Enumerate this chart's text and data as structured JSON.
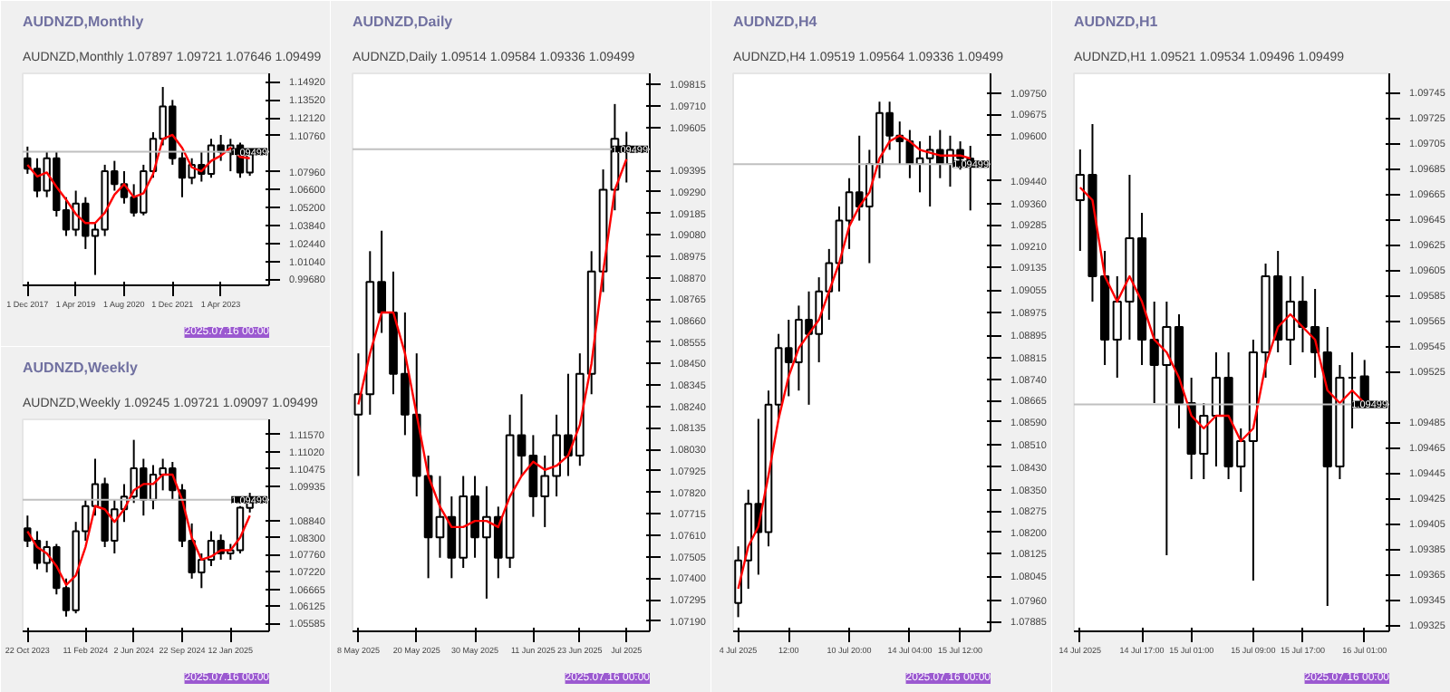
{
  "chart_data": [
    {
      "type": "candlestick",
      "title": "AUDNZD,Monthly",
      "subtitle": "AUDNZD,Monthly 1.07897 1.09721 1.07646 1.09499",
      "categories": [
        "1 Dec 2017",
        null,
        null,
        null,
        null,
        "1 Apr 2019",
        null,
        null,
        null,
        null,
        "1 Aug 2020",
        null,
        null,
        null,
        null,
        "1 Dec 2021",
        null,
        null,
        null,
        null,
        "1 Apr 2023",
        null,
        null,
        null
      ],
      "ohlc": [
        [
          1.09,
          1.099,
          1.078,
          1.082
        ],
        [
          1.082,
          1.09,
          1.06,
          1.065
        ],
        [
          1.065,
          1.095,
          1.06,
          1.09
        ],
        [
          1.09,
          1.095,
          1.045,
          1.05
        ],
        [
          1.05,
          1.06,
          1.03,
          1.035
        ],
        [
          1.035,
          1.065,
          1.03,
          1.055
        ],
        [
          1.055,
          1.06,
          1.02,
          1.03
        ],
        [
          1.03,
          1.04,
          1.0,
          1.035
        ],
        [
          1.035,
          1.085,
          1.03,
          1.08
        ],
        [
          1.08,
          1.088,
          1.065,
          1.07
        ],
        [
          1.07,
          1.08,
          1.055,
          1.06
        ],
        [
          1.06,
          1.07,
          1.045,
          1.048
        ],
        [
          1.048,
          1.085,
          1.046,
          1.08
        ],
        [
          1.08,
          1.11,
          1.075,
          1.105
        ],
        [
          1.105,
          1.145,
          1.1,
          1.13
        ],
        [
          1.13,
          1.135,
          1.085,
          1.09
        ],
        [
          1.09,
          1.095,
          1.06,
          1.075
        ],
        [
          1.075,
          1.09,
          1.07,
          1.085
        ],
        [
          1.085,
          1.095,
          1.072,
          1.078
        ],
        [
          1.078,
          1.105,
          1.075,
          1.1
        ],
        [
          1.1,
          1.108,
          1.088,
          1.095
        ],
        [
          1.095,
          1.105,
          1.08,
          1.1
        ],
        [
          1.1,
          1.102,
          1.075,
          1.079
        ],
        [
          1.07897,
          1.09721,
          1.07646,
          1.09499
        ]
      ],
      "series": [
        {
          "type": "line",
          "color": "#ff0000",
          "values": [
            1.085,
            1.076,
            1.079,
            1.068,
            1.058,
            1.047,
            1.04,
            1.04,
            1.048,
            1.062,
            1.07,
            1.06,
            1.063,
            1.078,
            1.105,
            1.108,
            1.098,
            1.083,
            1.08,
            1.088,
            1.092,
            1.098,
            1.091,
            1.09
          ]
        }
      ],
      "ylim": [
        0.992,
        1.1555
      ],
      "yticks": [
        {
          "value": 0.9968,
          "label": "0.99680"
        },
        {
          "value": 1.0104,
          "label": "1.01040"
        },
        {
          "value": 1.0244,
          "label": "1.02440"
        },
        {
          "value": 1.0384,
          "label": "1.03840"
        },
        {
          "value": 1.052,
          "label": "1.05200"
        },
        {
          "value": 1.066,
          "label": "1.06600"
        },
        {
          "value": 1.0796,
          "label": "1.07960"
        },
        {
          "value": 1.1076,
          "label": "1.10760"
        },
        {
          "value": 1.1212,
          "label": "1.12120"
        },
        {
          "value": 1.1352,
          "label": "1.13520"
        },
        {
          "value": 1.1492,
          "label": "1.14920"
        }
      ],
      "ref_lines": [
        {
          "axis": "y",
          "value": 1.09499,
          "label": "1.09499",
          "color": "#c0c0c0"
        }
      ],
      "annotations": [
        "2025.07.16 00:00"
      ],
      "grid": false
    },
    {
      "type": "candlestick",
      "title": "AUDNZD,Weekly",
      "subtitle": "AUDNZD,Weekly 1.09245 1.09721 1.09097 1.09499",
      "categories": [
        "22 Oct 2023",
        null,
        null,
        null,
        null,
        null,
        "11 Feb 2024",
        null,
        null,
        null,
        null,
        "2 Jun 2024",
        null,
        null,
        null,
        null,
        "22 Sep 2024",
        null,
        null,
        null,
        null,
        "12 Jan 2025",
        null,
        null
      ],
      "ohlc": [
        [
          1.086,
          1.09,
          1.08,
          1.082
        ],
        [
          1.082,
          1.085,
          1.073,
          1.075
        ],
        [
          1.075,
          1.082,
          1.072,
          1.08
        ],
        [
          1.08,
          1.081,
          1.065,
          1.067
        ],
        [
          1.067,
          1.07,
          1.058,
          1.06
        ],
        [
          1.06,
          1.088,
          1.059,
          1.085
        ],
        [
          1.085,
          1.095,
          1.082,
          1.093
        ],
        [
          1.093,
          1.108,
          1.09,
          1.1
        ],
        [
          1.1,
          1.102,
          1.08,
          1.082
        ],
        [
          1.082,
          1.095,
          1.078,
          1.092
        ],
        [
          1.092,
          1.1,
          1.088,
          1.096
        ],
        [
          1.096,
          1.114,
          1.094,
          1.105
        ],
        [
          1.105,
          1.108,
          1.09,
          1.095
        ],
        [
          1.095,
          1.106,
          1.092,
          1.103
        ],
        [
          1.103,
          1.108,
          1.098,
          1.105
        ],
        [
          1.105,
          1.107,
          1.095,
          1.098
        ],
        [
          1.098,
          1.1,
          1.08,
          1.082
        ],
        [
          1.082,
          1.0875,
          1.07,
          1.072
        ],
        [
          1.072,
          1.078,
          1.067,
          1.076
        ],
        [
          1.076,
          1.085,
          1.074,
          1.082
        ],
        [
          1.082,
          1.084,
          1.076,
          1.078
        ],
        [
          1.078,
          1.081,
          1.076,
          1.079
        ],
        [
          1.079,
          1.093,
          1.078,
          1.0925
        ],
        [
          1.09245,
          1.09721,
          1.09097,
          1.09499
        ]
      ],
      "series": [
        {
          "type": "line",
          "color": "#ff0000",
          "values": [
            1.085,
            1.08,
            1.078,
            1.074,
            1.068,
            1.071,
            1.08,
            1.093,
            1.092,
            1.088,
            1.092,
            1.098,
            1.1,
            1.1,
            1.103,
            1.103,
            1.095,
            1.083,
            1.076,
            1.077,
            1.079,
            1.079,
            1.083,
            1.09
          ]
        }
      ],
      "ylim": [
        1.0533,
        1.1205
      ],
      "yticks": [
        1.05585,
        1.06125,
        1.06665,
        {
          "value": 1.0722,
          "label": "1.07220"
        },
        {
          "value": 1.0776,
          "label": "1.07760"
        },
        {
          "value": 1.083,
          "label": "1.08300"
        },
        {
          "value": 1.0884,
          "label": "1.08840"
        },
        1.09935,
        1.10475,
        {
          "value": 1.1102,
          "label": "1.11020"
        },
        {
          "value": 1.1157,
          "label": "1.11570"
        }
      ],
      "ref_lines": [
        {
          "axis": "y",
          "value": 1.09499,
          "label": "1.09499",
          "color": "#c0c0c0"
        }
      ],
      "annotations": [
        "2025.07.16 00:00"
      ],
      "grid": false
    },
    {
      "type": "candlestick",
      "title": "AUDNZD,Daily",
      "subtitle": "AUDNZD,Daily 1.09514 1.09584 1.09336 1.09499",
      "categories": [
        "8 May 2025",
        null,
        null,
        null,
        null,
        "20 May 2025",
        null,
        null,
        null,
        null,
        "30 May 2025",
        null,
        null,
        null,
        null,
        "11 Jun 2025",
        null,
        null,
        null,
        "23 Jun 2025",
        null,
        null,
        null,
        "Jul 2025"
      ],
      "ohlc": [
        [
          1.082,
          1.085,
          1.079,
          1.083
        ],
        [
          1.083,
          1.09,
          1.082,
          1.0885
        ],
        [
          1.0885,
          1.091,
          1.086,
          1.087
        ],
        [
          1.087,
          1.089,
          1.083,
          1.084
        ],
        [
          1.084,
          1.087,
          1.081,
          1.082
        ],
        [
          1.082,
          1.085,
          1.078,
          1.079
        ],
        [
          1.079,
          1.08,
          1.074,
          1.076
        ],
        [
          1.076,
          1.079,
          1.075,
          1.077
        ],
        [
          1.077,
          1.078,
          1.074,
          1.075
        ],
        [
          1.075,
          1.079,
          1.0745,
          1.078
        ],
        [
          1.078,
          1.079,
          1.075,
          1.076
        ],
        [
          1.076,
          1.0785,
          1.073,
          1.077
        ],
        [
          1.077,
          1.0775,
          1.074,
          1.075
        ],
        [
          1.075,
          1.082,
          1.0745,
          1.081
        ],
        [
          1.081,
          1.083,
          1.079,
          1.08
        ],
        [
          1.08,
          1.081,
          1.077,
          1.078
        ],
        [
          1.078,
          1.08,
          1.0765,
          1.079
        ],
        [
          1.079,
          1.082,
          1.078,
          1.081
        ],
        [
          1.081,
          1.084,
          1.079,
          1.08
        ],
        [
          1.08,
          1.085,
          1.0795,
          1.084
        ],
        [
          1.084,
          1.09,
          1.083,
          1.089
        ],
        [
          1.089,
          1.094,
          1.088,
          1.093
        ],
        [
          1.093,
          1.0972,
          1.092,
          1.0955
        ],
        [
          1.09514,
          1.09584,
          1.09336,
          1.09499
        ]
      ],
      "series": [
        {
          "type": "line",
          "color": "#ff0000",
          "values": [
            1.0825,
            1.085,
            1.087,
            1.087,
            1.085,
            1.082,
            1.079,
            1.0775,
            1.0765,
            1.0765,
            1.0768,
            1.0768,
            1.0765,
            1.078,
            1.079,
            1.0797,
            1.0793,
            1.0795,
            1.08,
            1.0815,
            1.0845,
            1.089,
            1.093,
            1.0945
          ]
        }
      ],
      "ylim": [
        1.0714,
        1.0987
      ],
      "yticks": [
        {
          "value": 1.0719,
          "label": "1.07190"
        },
        1.07295,
        {
          "value": 1.074,
          "label": "1.07400"
        },
        1.07505,
        {
          "value": 1.0761,
          "label": "1.07610"
        },
        1.07715,
        {
          "value": 1.0782,
          "label": "1.07820"
        },
        1.07925,
        {
          "value": 1.0803,
          "label": "1.08030"
        },
        1.08135,
        {
          "value": 1.0824,
          "label": "1.08240"
        },
        1.08345,
        {
          "value": 1.0845,
          "label": "1.08450"
        },
        1.08555,
        {
          "value": 1.0866,
          "label": "1.08660"
        },
        1.08765,
        {
          "value": 1.0887,
          "label": "1.08870"
        },
        1.08975,
        {
          "value": 1.0908,
          "label": "1.09080"
        },
        1.09185,
        {
          "value": 1.0929,
          "label": "1.09290"
        },
        1.09395,
        1.09605,
        {
          "value": 1.0971,
          "label": "1.09710"
        },
        1.09815
      ],
      "ref_lines": [
        {
          "axis": "y",
          "value": 1.09499,
          "label": "1.09499",
          "color": "#c0c0c0"
        }
      ],
      "annotations": [
        "2025.07.16 00:00"
      ],
      "grid": false
    },
    {
      "type": "candlestick",
      "title": "AUDNZD,H4",
      "subtitle": "AUDNZD,H4 1.09519 1.09564 1.09336 1.09499",
      "categories": [
        "4 Jul 2025",
        null,
        null,
        null,
        null,
        "12:00",
        null,
        null,
        null,
        null,
        null,
        "10 Jul 20:00",
        null,
        null,
        null,
        null,
        null,
        "14 Jul 04:00",
        null,
        null,
        null,
        null,
        "15 Jul 12:00",
        null
      ],
      "ohlc": [
        [
          1.0795,
          1.0815,
          1.079,
          1.081
        ],
        [
          1.081,
          1.0835,
          1.08,
          1.083
        ],
        [
          1.083,
          1.086,
          1.0805,
          1.082
        ],
        [
          1.082,
          1.087,
          1.0815,
          1.0865
        ],
        [
          1.0865,
          1.089,
          1.086,
          1.0885
        ],
        [
          1.0885,
          1.0895,
          1.0868,
          1.088
        ],
        [
          1.088,
          1.09,
          1.087,
          1.0895
        ],
        [
          1.0895,
          1.0905,
          1.0865,
          1.089
        ],
        [
          1.089,
          1.091,
          1.088,
          1.0905
        ],
        [
          1.0905,
          1.092,
          1.0895,
          1.0915
        ],
        [
          1.0915,
          1.0935,
          1.0905,
          1.093
        ],
        [
          1.093,
          1.0945,
          1.092,
          1.094
        ],
        [
          1.094,
          1.096,
          1.093,
          1.0935
        ],
        [
          1.0935,
          1.0955,
          1.0915,
          1.095
        ],
        [
          1.095,
          1.0972,
          1.0945,
          1.0968
        ],
        [
          1.0968,
          1.0972,
          1.0955,
          1.096
        ],
        [
          1.096,
          1.0965,
          1.095,
          1.0958
        ],
        [
          1.0958,
          1.0962,
          1.0945,
          1.095
        ],
        [
          1.095,
          1.0958,
          1.094,
          1.0952
        ],
        [
          1.0952,
          1.096,
          1.0935,
          1.0955
        ],
        [
          1.0955,
          1.0962,
          1.0945,
          1.095
        ],
        [
          1.095,
          1.096,
          1.0942,
          1.0955
        ],
        [
          1.0955,
          1.0958,
          1.0948,
          1.0952
        ],
        [
          1.09519,
          1.09564,
          1.09336,
          1.09499
        ]
      ],
      "series": [
        {
          "type": "line",
          "color": "#ff0000",
          "values": [
            1.08,
            1.0815,
            1.0822,
            1.084,
            1.086,
            1.0875,
            1.0885,
            1.089,
            1.0895,
            1.0905,
            1.0915,
            1.0928,
            1.0935,
            1.094,
            1.0952,
            1.0958,
            1.096,
            1.0958,
            1.0955,
            1.0954,
            1.0953,
            1.0953,
            1.0953,
            1.0952
          ]
        }
      ],
      "ylim": [
        1.0785,
        1.0982
      ],
      "yticks": [
        1.07885,
        {
          "value": 1.0796,
          "label": "1.07960"
        },
        1.08045,
        1.08125,
        {
          "value": 1.082,
          "label": "1.08200"
        },
        1.08275,
        {
          "value": 1.0835,
          "label": "1.08350"
        },
        {
          "value": 1.0843,
          "label": "1.08430"
        },
        {
          "value": 1.0851,
          "label": "1.08510"
        },
        {
          "value": 1.0859,
          "label": "1.08590"
        },
        1.08665,
        {
          "value": 1.0874,
          "label": "1.08740"
        },
        1.08815,
        1.08895,
        1.08975,
        1.09055,
        1.09135,
        {
          "value": 1.0921,
          "label": "1.09210"
        },
        1.09285,
        {
          "value": 1.0936,
          "label": "1.09360"
        },
        {
          "value": 1.0944,
          "label": "1.09440"
        },
        {
          "value": 1.096,
          "label": "1.09600"
        },
        1.09675,
        {
          "value": 1.0975,
          "label": "1.09750"
        }
      ],
      "ref_lines": [
        {
          "axis": "y",
          "value": 1.09499,
          "label": "1.09499",
          "color": "#c0c0c0"
        }
      ],
      "annotations": [
        "2025.07.16 00:00"
      ],
      "grid": false
    },
    {
      "type": "candlestick",
      "title": "AUDNZD,H1",
      "subtitle": "AUDNZD,H1 1.09521 1.09534 1.09496 1.09499",
      "categories": [
        "14 Jul 2025",
        null,
        null,
        null,
        null,
        "14 Jul 17:00",
        null,
        null,
        null,
        "15 Jul 01:00",
        null,
        null,
        null,
        null,
        "15 Jul 09:00",
        null,
        null,
        null,
        "15 Jul 17:00",
        null,
        null,
        null,
        null,
        "16 Jul 01:00"
      ],
      "ohlc": [
        [
          1.0966,
          1.097,
          1.0962,
          1.0968
        ],
        [
          1.0968,
          1.0972,
          1.0958,
          1.096
        ],
        [
          1.096,
          1.0962,
          1.0953,
          1.0955
        ],
        [
          1.0955,
          1.096,
          1.0952,
          1.0958
        ],
        [
          1.0958,
          1.0968,
          1.0955,
          1.0963
        ],
        [
          1.0963,
          1.0965,
          1.0953,
          1.0955
        ],
        [
          1.0955,
          1.0958,
          1.095,
          1.0953
        ],
        [
          1.0953,
          1.0958,
          1.0938,
          1.0956
        ],
        [
          1.0956,
          1.0957,
          1.0948,
          1.095
        ],
        [
          1.095,
          1.0952,
          1.0944,
          1.0946
        ],
        [
          1.0946,
          1.095,
          1.0944,
          1.0949
        ],
        [
          1.0949,
          1.0954,
          1.0945,
          1.0952
        ],
        [
          1.0952,
          1.0954,
          1.0944,
          1.0945
        ],
        [
          1.0945,
          1.0948,
          1.0943,
          1.0947
        ],
        [
          1.0947,
          1.0955,
          1.0936,
          1.0954
        ],
        [
          1.0954,
          1.0961,
          1.0952,
          1.096
        ],
        [
          1.096,
          1.0962,
          1.0954,
          1.0955
        ],
        [
          1.0955,
          1.096,
          1.0953,
          1.0958
        ],
        [
          1.0958,
          1.096,
          1.0954,
          1.0956
        ],
        [
          1.0956,
          1.0959,
          1.0952,
          1.0954
        ],
        [
          1.0954,
          1.0956,
          1.0934,
          1.0945
        ],
        [
          1.0945,
          1.0953,
          1.0944,
          1.0952
        ],
        [
          1.0952,
          1.0954,
          1.0948,
          1.0952
        ],
        [
          1.09521,
          1.09534,
          1.09496,
          1.09499
        ]
      ],
      "series": [
        {
          "type": "line",
          "color": "#ff0000",
          "values": [
            1.0967,
            1.0966,
            1.096,
            1.0958,
            1.096,
            1.0958,
            1.0955,
            1.0954,
            1.0952,
            1.0949,
            1.0948,
            1.0949,
            1.0949,
            1.0947,
            1.0948,
            1.0953,
            1.0956,
            1.0957,
            1.0956,
            1.0955,
            1.0951,
            1.095,
            1.0951,
            1.095
          ]
        }
      ],
      "ylim": [
        1.0932,
        1.0976
      ],
      "yticks": [
        1.09325,
        1.09345,
        1.09365,
        1.09385,
        1.09405,
        1.09425,
        1.09445,
        1.09465,
        1.09485,
        1.09525,
        1.09545,
        1.09565,
        1.09585,
        1.09605,
        1.09625,
        1.09645,
        1.09665,
        1.09685,
        1.09705,
        1.09725,
        1.09745
      ],
      "ref_lines": [
        {
          "axis": "y",
          "value": 1.09499,
          "label": "1.09499",
          "color": "#c0c0c0"
        }
      ],
      "annotations": [
        "2025.07.16 00:00"
      ],
      "grid": false
    }
  ]
}
